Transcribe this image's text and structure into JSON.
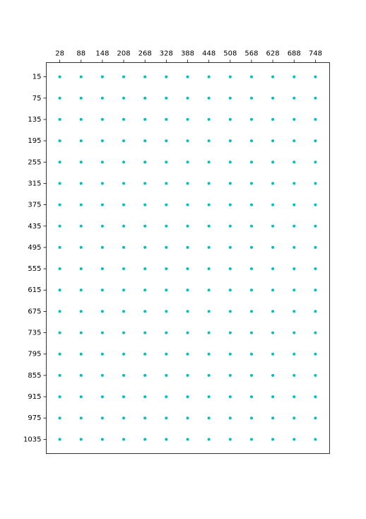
{
  "chart_data": {
    "type": "scatter",
    "color": "#00bfbf",
    "xlim": [
      -10,
      788
    ],
    "ylim": [
      1075,
      -25
    ],
    "xaxis_position": "top",
    "xticks": [
      28,
      88,
      148,
      208,
      268,
      328,
      388,
      448,
      508,
      568,
      628,
      688,
      748
    ],
    "yticks": [
      15,
      75,
      135,
      195,
      255,
      315,
      375,
      435,
      495,
      555,
      615,
      675,
      735,
      795,
      855,
      915,
      975,
      1035
    ],
    "x": [
      28,
      88,
      148,
      208,
      268,
      328,
      388,
      448,
      508,
      568,
      628,
      688,
      748,
      28,
      88,
      148,
      208,
      268,
      328,
      388,
      448,
      508,
      568,
      628,
      688,
      748,
      28,
      88,
      148,
      208,
      268,
      328,
      388,
      448,
      508,
      568,
      628,
      688,
      748,
      28,
      88,
      148,
      208,
      268,
      328,
      388,
      448,
      508,
      568,
      628,
      688,
      748,
      28,
      88,
      148,
      208,
      268,
      328,
      388,
      448,
      508,
      568,
      628,
      688,
      748,
      28,
      88,
      148,
      208,
      268,
      328,
      388,
      448,
      508,
      568,
      628,
      688,
      748,
      28,
      88,
      148,
      208,
      268,
      328,
      388,
      448,
      508,
      568,
      628,
      688,
      748,
      28,
      88,
      148,
      208,
      268,
      328,
      388,
      448,
      508,
      568,
      628,
      688,
      748,
      28,
      88,
      148,
      208,
      268,
      328,
      388,
      448,
      508,
      568,
      628,
      688,
      748,
      28,
      88,
      148,
      208,
      268,
      328,
      388,
      448,
      508,
      568,
      628,
      688,
      748,
      28,
      88,
      148,
      208,
      268,
      328,
      388,
      448,
      508,
      568,
      628,
      688,
      748,
      28,
      88,
      148,
      208,
      268,
      328,
      388,
      448,
      508,
      568,
      628,
      688,
      748,
      28,
      88,
      148,
      208,
      268,
      328,
      388,
      448,
      508,
      568,
      628,
      688,
      748,
      28,
      88,
      148,
      208,
      268,
      328,
      388,
      448,
      508,
      568,
      628,
      688,
      748,
      28,
      88,
      148,
      208,
      268,
      328,
      388,
      448,
      508,
      568,
      628,
      688,
      748,
      28,
      88,
      148,
      208,
      268,
      328,
      388,
      448,
      508,
      568,
      628,
      688,
      748,
      28,
      88,
      148,
      208,
      268,
      328,
      388,
      448,
      508,
      568,
      628,
      688,
      748,
      28,
      88,
      148,
      208,
      268,
      328,
      388,
      448,
      508,
      568,
      628,
      688,
      748
    ],
    "y": [
      15,
      15,
      15,
      15,
      15,
      15,
      15,
      15,
      15,
      15,
      15,
      15,
      15,
      75,
      75,
      75,
      75,
      75,
      75,
      75,
      75,
      75,
      75,
      75,
      75,
      75,
      135,
      135,
      135,
      135,
      135,
      135,
      135,
      135,
      135,
      135,
      135,
      135,
      135,
      195,
      195,
      195,
      195,
      195,
      195,
      195,
      195,
      195,
      195,
      195,
      195,
      195,
      255,
      255,
      255,
      255,
      255,
      255,
      255,
      255,
      255,
      255,
      255,
      255,
      255,
      315,
      315,
      315,
      315,
      315,
      315,
      315,
      315,
      315,
      315,
      315,
      315,
      315,
      375,
      375,
      375,
      375,
      375,
      375,
      375,
      375,
      375,
      375,
      375,
      375,
      375,
      435,
      435,
      435,
      435,
      435,
      435,
      435,
      435,
      435,
      435,
      435,
      435,
      435,
      495,
      495,
      495,
      495,
      495,
      495,
      495,
      495,
      495,
      495,
      495,
      495,
      495,
      555,
      555,
      555,
      555,
      555,
      555,
      555,
      555,
      555,
      555,
      555,
      555,
      555,
      615,
      615,
      615,
      615,
      615,
      615,
      615,
      615,
      615,
      615,
      615,
      615,
      615,
      675,
      675,
      675,
      675,
      675,
      675,
      675,
      675,
      675,
      675,
      675,
      675,
      675,
      735,
      735,
      735,
      735,
      735,
      735,
      735,
      735,
      735,
      735,
      735,
      735,
      735,
      795,
      795,
      795,
      795,
      795,
      795,
      795,
      795,
      795,
      795,
      795,
      795,
      795,
      855,
      855,
      855,
      855,
      855,
      855,
      855,
      855,
      855,
      855,
      855,
      855,
      855,
      915,
      915,
      915,
      915,
      915,
      915,
      915,
      915,
      915,
      915,
      915,
      915,
      915,
      975,
      975,
      975,
      975,
      975,
      975,
      975,
      975,
      975,
      975,
      975,
      975,
      975,
      1035,
      1035,
      1035,
      1035,
      1035,
      1035,
      1035,
      1035,
      1035,
      1035,
      1035,
      1035,
      1035
    ]
  }
}
